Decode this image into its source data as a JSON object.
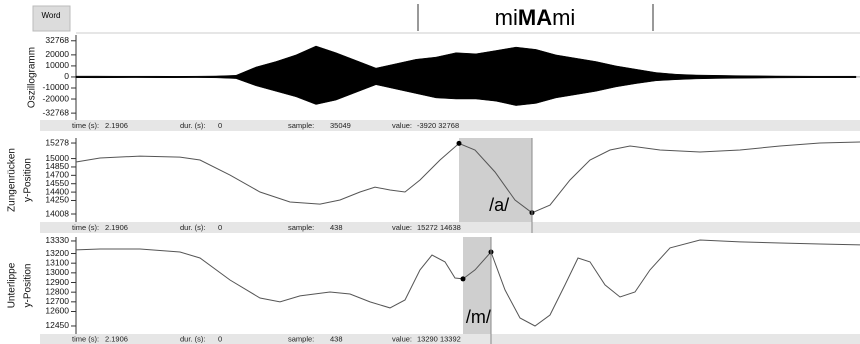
{
  "word_tier": {
    "button": "Word",
    "word": [
      "mi",
      "MA",
      "mi"
    ]
  },
  "chart_data": [
    {
      "type": "area",
      "ylabel": [
        "Oszillogramm"
      ],
      "ylim": [
        -39000,
        38000
      ],
      "yticks": [
        32768,
        20000,
        10000,
        0,
        -10000,
        -20000,
        -32768
      ],
      "xlim": [
        0,
        784
      ],
      "x": [
        0,
        20,
        40,
        60,
        80,
        100,
        120,
        140,
        160,
        180,
        200,
        220,
        240,
        260,
        280,
        300,
        320,
        340,
        360,
        380,
        400,
        420,
        440,
        460,
        480,
        500,
        520,
        540,
        560,
        580,
        600,
        620,
        640,
        660,
        680,
        700,
        720,
        740,
        760,
        780
      ],
      "series": [
        {
          "color": "#000000",
          "values": [
            800,
            800,
            700,
            700,
            700,
            600,
            700,
            900,
            1500,
            9000,
            14000,
            20000,
            28000,
            22000,
            15000,
            8000,
            12000,
            16000,
            18000,
            22000,
            21000,
            24000,
            27000,
            25000,
            20000,
            17000,
            14000,
            10000,
            7000,
            4000,
            2500,
            1800,
            1500,
            1200,
            1000,
            900,
            800,
            700,
            700,
            700
          ]
        },
        {
          "color": "#000000",
          "values": [
            -700,
            -800,
            -700,
            -600,
            -700,
            -700,
            -600,
            -800,
            -1500,
            -8000,
            -13000,
            -18000,
            -25000,
            -21000,
            -14000,
            -7000,
            -11000,
            -15000,
            -19000,
            -20000,
            -20000,
            -22000,
            -26000,
            -24000,
            -19000,
            -16000,
            -13000,
            -9000,
            -6000,
            -3500,
            -2500,
            -1800,
            -1400,
            -1200,
            -1000,
            -900,
            -800,
            -700,
            -700,
            -700
          ]
        }
      ],
      "status": {
        "time_label": "time (s):",
        "time": "2.1906",
        "dur_label": "dur. (s):",
        "dur": "0",
        "sample_label": "sample:",
        "sample": "35049",
        "value_label": "value:",
        "value": "-3920 32768"
      }
    },
    {
      "type": "line",
      "ylabel": [
        "Zungenrücken",
        "y-Position"
      ],
      "ylim": [
        13865,
        15368
      ],
      "yticks": [
        15278,
        15000,
        14850,
        14700,
        14550,
        14400,
        14250,
        14008
      ],
      "xlim": [
        0,
        784
      ],
      "x": [
        0,
        24,
        64,
        104,
        124,
        154,
        184,
        214,
        244,
        264,
        284,
        299,
        314,
        329,
        344,
        364,
        383,
        399,
        419,
        439,
        456,
        474,
        494,
        514,
        534,
        554,
        584,
        624,
        664,
        704,
        744,
        784
      ],
      "series": [
        {
          "color": "#555555",
          "values": [
            14938,
            15010,
            15045,
            15027,
            14974,
            14705,
            14401,
            14222,
            14186,
            14258,
            14401,
            14490,
            14437,
            14401,
            14616,
            14974,
            15272,
            15153,
            14759,
            14258,
            14030,
            14168,
            14616,
            14974,
            15153,
            15224,
            15153,
            15117,
            15153,
            15224,
            15278,
            15296
          ]
        }
      ],
      "highlight": {
        "label": "/a/",
        "x": [
          383,
          456
        ],
        "points": [
          {
            "x": 383,
            "y": 15272
          },
          {
            "x": 456,
            "y": 14030
          }
        ]
      },
      "cursor": 456,
      "status": {
        "time_label": "time (s):",
        "time": "2.1906",
        "dur_label": "dur. (s):",
        "dur": "0",
        "sample_label": "sample:",
        "sample": "438",
        "value_label": "value:",
        "value": "15272 14638"
      }
    },
    {
      "type": "line",
      "ylabel": [
        "Unterlippe",
        "y-Position"
      ],
      "ylim": [
        12367,
        13371
      ],
      "yticks": [
        13330,
        13200,
        13100,
        13000,
        12900,
        12800,
        12700,
        12600,
        12450
      ],
      "xlim": [
        0,
        784
      ],
      "x": [
        0,
        24,
        64,
        104,
        124,
        154,
        184,
        204,
        224,
        254,
        274,
        294,
        314,
        329,
        344,
        356,
        369,
        379,
        387,
        399,
        415,
        429,
        444,
        459,
        474,
        489,
        502,
        514,
        529,
        544,
        559,
        574,
        594,
        624,
        664,
        704,
        744,
        784
      ],
      "series": [
        {
          "color": "#555555",
          "values": [
            13237,
            13247,
            13247,
            13216,
            13154,
            12926,
            12740,
            12699,
            12761,
            12802,
            12781,
            12699,
            12637,
            12719,
            13030,
            13185,
            13113,
            12947,
            12937,
            13030,
            13216,
            12823,
            12533,
            12450,
            12564,
            12875,
            13154,
            13113,
            12875,
            12750,
            12802,
            13030,
            13258,
            13340,
            13320,
            13309,
            13299,
            13289
          ]
        }
      ],
      "highlight": {
        "label": "/m/",
        "x": [
          387,
          415
        ],
        "points": [
          {
            "x": 387,
            "y": 12937
          },
          {
            "x": 415,
            "y": 13216
          }
        ]
      },
      "cursor": 415,
      "status": {
        "time_label": "time (s):",
        "time": "2.1906",
        "dur_label": "dur. (s):",
        "dur": "0",
        "sample_label": "sample:",
        "sample": "438",
        "value_label": "value:",
        "value": "13290 13392"
      }
    }
  ]
}
